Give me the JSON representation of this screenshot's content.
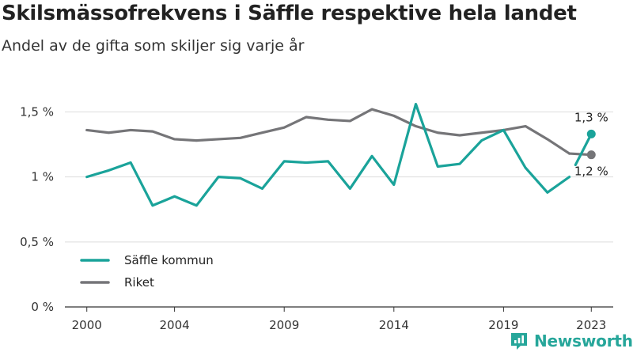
{
  "chart_data": {
    "type": "line",
    "title": "Skilsmässofrekvens i Säffle respektive hela landet",
    "subtitle": "Andel av de gifta som skiljer sig varje år",
    "x": [
      2000,
      2001,
      2002,
      2003,
      2004,
      2005,
      2006,
      2007,
      2008,
      2009,
      2010,
      2011,
      2012,
      2013,
      2014,
      2015,
      2016,
      2017,
      2018,
      2019,
      2020,
      2021,
      2022,
      2023
    ],
    "series": [
      {
        "name": "Säffle kommun",
        "color": "#1aa39a",
        "values": [
          1.0,
          1.05,
          1.11,
          0.78,
          0.85,
          0.78,
          1.0,
          0.99,
          0.91,
          1.12,
          1.11,
          1.12,
          0.91,
          1.16,
          0.94,
          1.56,
          1.08,
          1.1,
          1.28,
          1.36,
          1.07,
          0.88,
          1.0,
          1.33
        ]
      },
      {
        "name": "Riket",
        "color": "#757578",
        "values": [
          1.36,
          1.34,
          1.36,
          1.35,
          1.29,
          1.28,
          1.29,
          1.3,
          1.34,
          1.38,
          1.46,
          1.44,
          1.43,
          1.52,
          1.47,
          1.39,
          1.34,
          1.32,
          1.34,
          1.36,
          1.39,
          1.29,
          1.18,
          1.17
        ]
      }
    ],
    "x_ticks": [
      2000,
      2004,
      2009,
      2014,
      2019,
      2023
    ],
    "y_ticks": [
      {
        "value": 0,
        "label": "0 %"
      },
      {
        "value": 0.5,
        "label": "0,5 %"
      },
      {
        "value": 1,
        "label": "1 %"
      },
      {
        "value": 1.5,
        "label": "1,5 %"
      }
    ],
    "ylim": [
      0,
      1.6
    ],
    "xlim": [
      1999,
      2024
    ],
    "end_labels": [
      "1,3 %",
      "1,2 %"
    ],
    "legend": {
      "position": "bottom-left"
    },
    "grid": true
  },
  "brand": {
    "name": "Newsworthy",
    "color": "#26a69a"
  }
}
